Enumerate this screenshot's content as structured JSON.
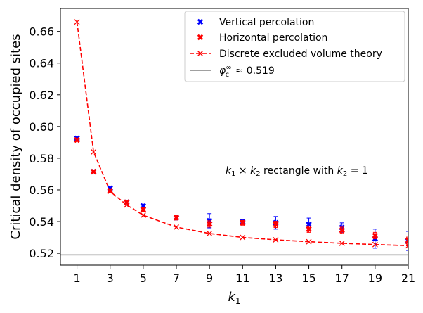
{
  "chart_data": {
    "type": "scatter",
    "title": "",
    "xlabel_base": "k",
    "xlabel_sub": "1",
    "ylabel": "Critical density of occupied sites",
    "xlim": [
      0,
      21
    ],
    "ylim": [
      0.5125,
      0.6745
    ],
    "xticks": [
      1,
      3,
      5,
      7,
      9,
      11,
      13,
      15,
      17,
      19,
      21
    ],
    "yticks": [
      0.52,
      0.54,
      0.56,
      0.58,
      0.6,
      0.62,
      0.64,
      0.66
    ],
    "ytick_labels": [
      "0.52",
      "0.54",
      "0.56",
      "0.58",
      "0.60",
      "0.62",
      "0.64",
      "0.66"
    ],
    "xtick_labels": [
      "1",
      "3",
      "5",
      "7",
      "9",
      "11",
      "13",
      "15",
      "17",
      "19",
      "21"
    ],
    "colors": {
      "vertical": "#0000ff",
      "horizontal": "#ff0000",
      "theory": "#ff0000",
      "limit": "#808080"
    },
    "series": [
      {
        "name": "Vertical percolation",
        "marker": "X",
        "x": [
          1,
          2,
          3,
          4,
          5,
          7,
          9,
          11,
          13,
          15,
          17,
          19,
          21
        ],
        "y": [
          0.5925,
          0.5715,
          0.561,
          0.5522,
          0.5498,
          0.5425,
          0.5405,
          0.5398,
          0.5392,
          0.5382,
          0.5362,
          0.5292,
          0.5278
        ],
        "err": [
          0.0006,
          0.0006,
          0.0008,
          0.0008,
          0.0012,
          0.0015,
          0.0045,
          0.0015,
          0.004,
          0.004,
          0.003,
          0.006,
          0.006
        ]
      },
      {
        "name": "Horizontal percolation",
        "marker": "X",
        "x": [
          1,
          2,
          3,
          4,
          5,
          7,
          9,
          11,
          13,
          15,
          17,
          19,
          21
        ],
        "y": [
          0.5915,
          0.5715,
          0.5595,
          0.5522,
          0.5475,
          0.5425,
          0.5385,
          0.5392,
          0.5382,
          0.5352,
          0.5345,
          0.5312,
          0.5282
        ],
        "err": [
          0.0006,
          0.0006,
          0.0008,
          0.0008,
          0.0012,
          0.0015,
          0.002,
          0.0015,
          0.002,
          0.002,
          0.002,
          0.002,
          0.002
        ]
      },
      {
        "name": "Discrete excluded volume theory",
        "marker": "x",
        "line": "dashed",
        "x": [
          1,
          2,
          3,
          4,
          5,
          7,
          9,
          11,
          13,
          15,
          17,
          19,
          21
        ],
        "y": [
          0.666,
          0.584,
          0.559,
          0.5505,
          0.544,
          0.5365,
          0.5325,
          0.53,
          0.5285,
          0.5273,
          0.5263,
          0.5255,
          0.5248
        ]
      }
    ],
    "hline": {
      "y": 0.519,
      "label_sym": "φ",
      "label_sup": "∞",
      "label_sub": "c",
      "label_rest": " ≈ 0.519"
    },
    "annotation": {
      "k1": "k",
      "k1_sub": "1",
      "times": " × ",
      "k2": "k",
      "k2_sub": "2",
      "rest": " rectangle with ",
      "k2b": "k",
      "k2b_sub": "2",
      "eq": " = 1"
    },
    "legend_position": "top-right"
  }
}
